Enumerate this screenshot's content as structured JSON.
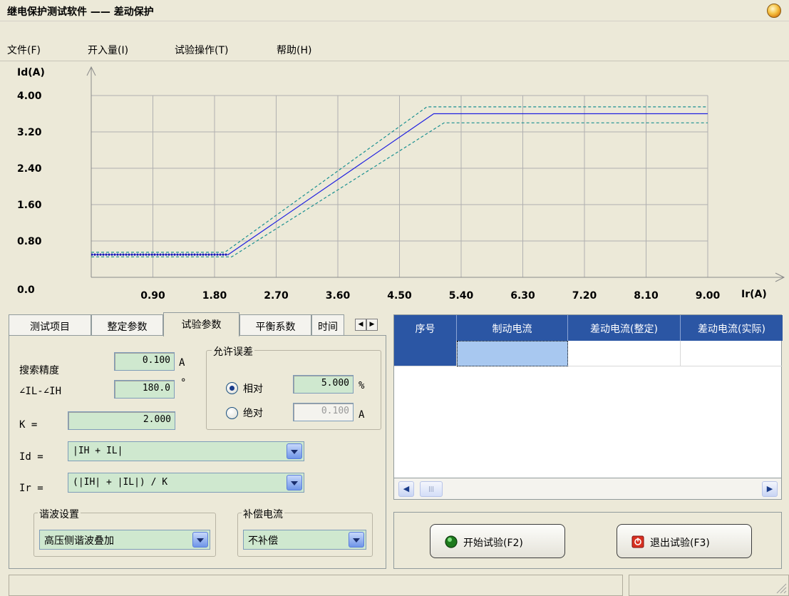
{
  "window": {
    "title": "继电保护测试软件 —— 差动保护"
  },
  "menu": [
    {
      "label": "文件(F)"
    },
    {
      "label": "开入量(I)"
    },
    {
      "label": "试验操作(T)"
    },
    {
      "label": "帮助(H)"
    }
  ],
  "chart_data": {
    "type": "line",
    "ylabel": "Id(A)",
    "xlabel": "Ir(A)",
    "x_ticks": [
      "0.90",
      "1.80",
      "2.70",
      "3.60",
      "4.50",
      "5.40",
      "6.30",
      "7.20",
      "8.10",
      "9.00"
    ],
    "y_ticks": [
      "0.0",
      "0.80",
      "1.60",
      "2.40",
      "3.20",
      "4.00"
    ],
    "xlim": [
      0,
      9.0
    ],
    "ylim": [
      0,
      4.0
    ],
    "grid": true,
    "series": [
      {
        "style": "solid",
        "color": "#2020e0",
        "points": [
          [
            0,
            0.5
          ],
          [
            2.0,
            0.5
          ],
          [
            5.0,
            3.6
          ],
          [
            9.0,
            3.6
          ]
        ]
      },
      {
        "style": "dashed",
        "color": "#1a9090",
        "points": [
          [
            0,
            0.45
          ],
          [
            2.05,
            0.45
          ],
          [
            5.15,
            3.4
          ],
          [
            9.0,
            3.4
          ]
        ]
      },
      {
        "style": "dashed",
        "color": "#1a9090",
        "points": [
          [
            0,
            0.55
          ],
          [
            1.95,
            0.55
          ],
          [
            4.9,
            3.75
          ],
          [
            9.0,
            3.75
          ]
        ]
      },
      {
        "style": "dotted",
        "color": "#1a1ab0",
        "points": [
          [
            0,
            0.5
          ],
          [
            2.0,
            0.5
          ]
        ]
      }
    ]
  },
  "tabs": [
    {
      "label": "测试项目"
    },
    {
      "label": "整定参数"
    },
    {
      "label": "试验参数",
      "active": true
    },
    {
      "label": "平衡系数"
    },
    {
      "label": "时间"
    }
  ],
  "params": {
    "search_precision_label": "搜索精度",
    "search_precision_value": "0.100",
    "search_precision_unit": "A",
    "angle_label": "∠IL-∠IH",
    "angle_value": "180.0",
    "angle_unit": "°",
    "k_label": "K =",
    "k_value": "2.000",
    "id_label": "Id =",
    "id_value": "|IH + IL|",
    "ir_label": "Ir =",
    "ir_value": "(|IH| + |IL|) / K"
  },
  "tolerance": {
    "title": "允许误差",
    "relative_label": "相对",
    "relative_value": "5.000",
    "relative_unit": "%",
    "absolute_label": "绝对",
    "absolute_value": "0.100",
    "absolute_unit": "A",
    "selected": "relative"
  },
  "harmonic": {
    "title": "谐波设置",
    "value": "高压侧谐波叠加"
  },
  "compensation": {
    "title": "补偿电流",
    "value": "不补偿"
  },
  "table": {
    "columns": [
      "序号",
      "制动电流",
      "差动电流(整定)",
      "差动电流(实际)"
    ]
  },
  "buttons": {
    "start": "开始试验(F2)",
    "exit": "退出试验(F3)"
  },
  "colors": {
    "header_blue": "#2b56a4",
    "field_green": "#cfe8cf",
    "window_bg": "#ece9d8"
  }
}
